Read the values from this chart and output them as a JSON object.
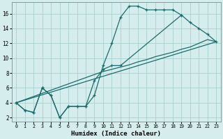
{
  "xlabel": "Humidex (Indice chaleur)",
  "background_color": "#d5eeed",
  "grid_color": "#aed4d1",
  "line_color": "#1a6b6b",
  "xlim": [
    -0.5,
    23.5
  ],
  "ylim": [
    1.5,
    17.5
  ],
  "yticks": [
    2,
    4,
    6,
    8,
    10,
    12,
    14,
    16
  ],
  "xticks": [
    0,
    1,
    2,
    3,
    4,
    5,
    6,
    7,
    8,
    9,
    10,
    11,
    12,
    13,
    14,
    15,
    16,
    17,
    18,
    19,
    20,
    21,
    22,
    23
  ],
  "line1_x": [
    0,
    1,
    2,
    3,
    4,
    5,
    6,
    7,
    8,
    9,
    10,
    11,
    12,
    13,
    14,
    15,
    16,
    17,
    18,
    19
  ],
  "line1_y": [
    4,
    3,
    2.7,
    6.0,
    5.0,
    2.0,
    3.5,
    3.5,
    3.5,
    5.0,
    9.0,
    12.0,
    15.5,
    17.0,
    17.0,
    16.5,
    16.5,
    16.5,
    16.5,
    15.8
  ],
  "line2_x": [
    0,
    1,
    2,
    3,
    4,
    5,
    6,
    7,
    8,
    9,
    10,
    11,
    12,
    19,
    20,
    21,
    22,
    23
  ],
  "line2_y": [
    4,
    3,
    2.7,
    6.0,
    5.0,
    2.0,
    3.5,
    3.5,
    3.5,
    7.0,
    8.5,
    9.0,
    9.0,
    15.8,
    14.8,
    14.0,
    13.2,
    12.2
  ],
  "line3_x": [
    0,
    23
  ],
  "line3_y": [
    4.0,
    12.2
  ],
  "line4_x": [
    0,
    9,
    10,
    11,
    12,
    13,
    14,
    15,
    16,
    17,
    18,
    19,
    20,
    21,
    22,
    23
  ],
  "line4_y": [
    4.0,
    7.8,
    8.2,
    8.5,
    8.8,
    9.1,
    9.5,
    9.8,
    10.2,
    10.5,
    10.8,
    11.2,
    11.5,
    12.0,
    12.5,
    12.2
  ]
}
